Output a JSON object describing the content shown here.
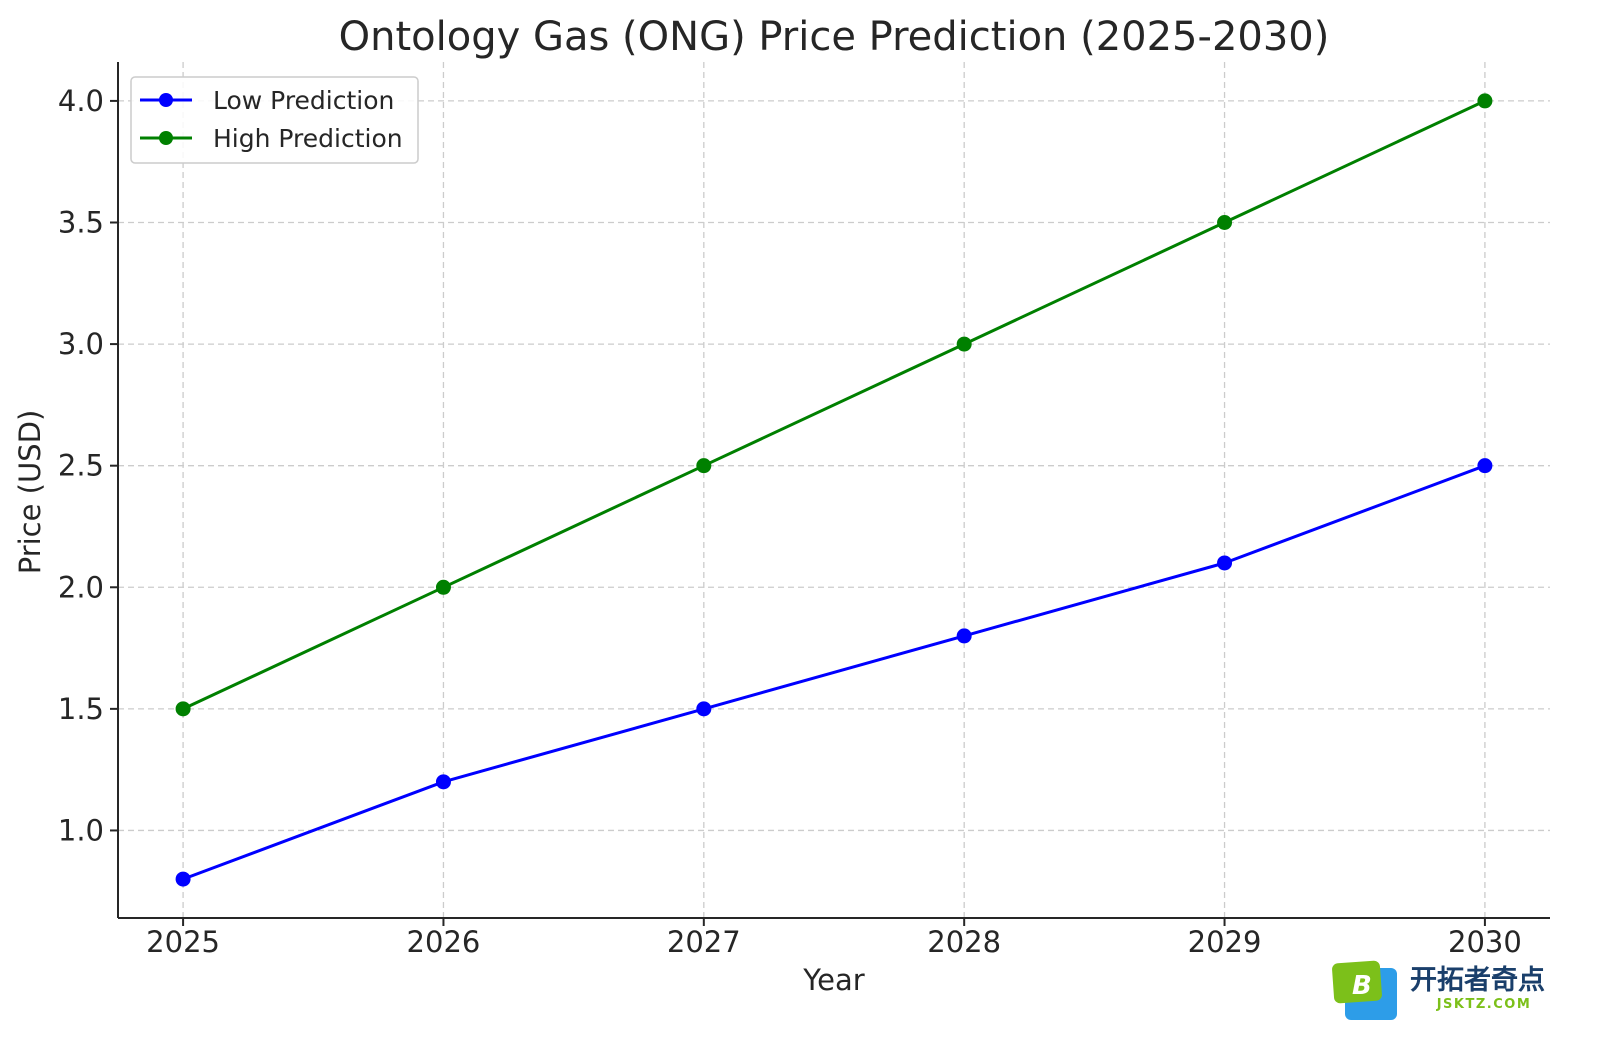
{
  "chart_data": {
    "type": "line",
    "title": "Ontology Gas (ONG) Price Prediction (2025-2030)",
    "xlabel": "Year",
    "ylabel": "Price (USD)",
    "x": [
      2025,
      2026,
      2027,
      2028,
      2029,
      2030
    ],
    "xticks": [
      "2025",
      "2026",
      "2027",
      "2028",
      "2029",
      "2030"
    ],
    "yticks": [
      "1.0",
      "1.5",
      "2.0",
      "2.5",
      "3.0",
      "3.5",
      "4.0"
    ],
    "ytick_values": [
      1.0,
      1.5,
      2.0,
      2.5,
      3.0,
      3.5,
      4.0
    ],
    "xlim": [
      2024.75,
      2030.25
    ],
    "ylim": [
      0.64,
      4.16
    ],
    "grid": true,
    "legend_position": "top-left",
    "series": [
      {
        "name": "Low Prediction",
        "color": "#0000ff",
        "values": [
          0.8,
          1.2,
          1.5,
          1.8,
          2.1,
          2.5
        ]
      },
      {
        "name": "High Prediction",
        "color": "#008000",
        "values": [
          1.5,
          2.0,
          2.5,
          3.0,
          3.5,
          4.0
        ]
      }
    ]
  },
  "watermark": {
    "logo_letter": "B",
    "brand_text": "开拓者奇点",
    "domain_text": "JSKTZ.COM"
  }
}
